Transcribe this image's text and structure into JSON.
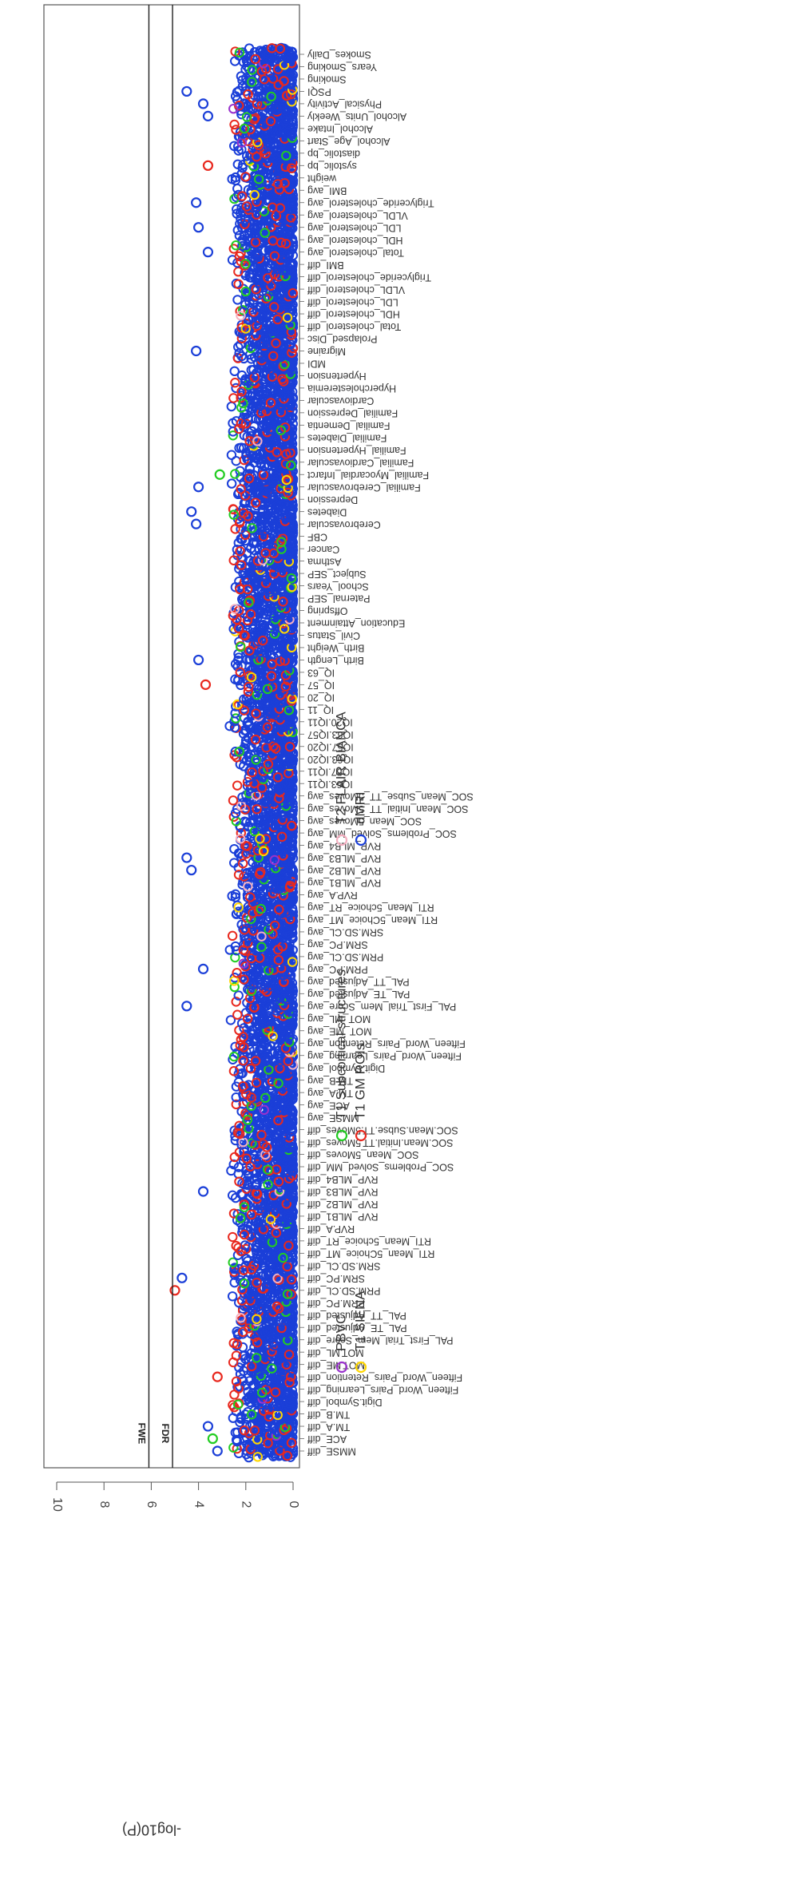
{
  "chart_data": {
    "type": "scatter",
    "orientation": "rotated-90",
    "title": "",
    "ylabel": "-log10(P)",
    "ylim": [
      0,
      10.5
    ],
    "yticks": [
      0,
      2,
      4,
      6,
      8,
      10
    ],
    "thresholds": [
      {
        "label": "FWE",
        "value": 6.1
      },
      {
        "label": "FDR",
        "value": 5.1
      }
    ],
    "legend": [
      {
        "label": "PBVC",
        "color": "#9932CC"
      },
      {
        "label": "T1 SIENA",
        "color": "#FFD700"
      },
      {
        "label": "T1 Subcortical structures",
        "color": "#22CC22"
      },
      {
        "label": "T1 GM ROIs",
        "color": "#E8281E"
      },
      {
        "label": "T2 FLAIR BIANCA",
        "color": "#F4AFC0"
      },
      {
        "label": "dMRI",
        "color": "#1B3FD8"
      }
    ],
    "categories": [
      "MMSE_diff",
      "ACE_diff",
      "TM.A_diff",
      "TM.B_diff",
      "Digit.Symbol_diff",
      "Fifteen_Word_Pairs_Learning_diff",
      "Fifteen_Word_Pairs_Retention_diff",
      "MOT.ME_diff",
      "MOT.ML_diff",
      "PAL_First_Trial_Mem_Score_diff",
      "PAL_TE_Adjusted_diff",
      "PAL_TT_Adjusted_diff",
      "PRM.PC_diff",
      "PRM.SD.CL_diff",
      "SRM.PC_diff",
      "SRM.SD.CL_diff",
      "RTI_Mean_5Choice_MT_diff",
      "RTI_Mean_5choice_RT_diff",
      "RVP.A_diff",
      "RVP_MLB1_diff",
      "RVP_MLB2_diff",
      "RVP_MLB3_diff",
      "RVP_MLB4_diff",
      "SOC_Problems_Solved_MM_diff",
      "SOC_Mean_5Moves_diff",
      "SOC.Mean.Initial.TT.5Moves_diff",
      "SOC.Mean.Subse.TT.5Moves_diff",
      "MMSE_avg",
      "ACE_avg",
      "TM.A_avg",
      "TM.B_avg",
      "Digit.Symbol_avg",
      "Fifteen_Word_Pairs_Learning_avg",
      "Fifteen_Word_Pairs_Retention_avg",
      "MOT_ME_avg",
      "MOT_ML_avg",
      "PAL_First_Trial_Mem_Score_avg",
      "PAL_TE_Adjusted_avg",
      "PAL_TT_Adjusted_avg",
      "PRM.PC_avg",
      "PRM.SD.CL_avg",
      "SRM.PC_avg",
      "SRM.SD.CL_avg",
      "RTI_Mean_5Choice_MT_avg",
      "RTI_Mean_5choice_RT_avg",
      "RVP.A_avg",
      "RVP_MLB1_avg",
      "RVP_MLB2_avg",
      "RVP_MLB3_avg",
      "RVP_MLB4_avg",
      "SOC_Problems_Solved_MM_avg",
      "SOC_Mean_5Moves_avg",
      "SOC_Mean_Initial_TT_5Moves_avg",
      "SOC_Mean_Subse_TT_5Moves_avg",
      "IQ63.IQ11",
      "IQ57.IQ11",
      "IQ63.IQ20",
      "IQ57.IQ20",
      "IQ63.IQ57",
      "IQ20.IQ11",
      "IQ_11",
      "IQ_20",
      "IQ_57",
      "IQ_63",
      "Birth_Length",
      "Birth_Weight",
      "Civil_Status",
      "Education_Attainment",
      "Offspring",
      "Paternal_SEP",
      "School_Years",
      "Subject_SEP",
      "Asthma",
      "Cancer",
      "CBF",
      "Cerebrovascular",
      "Diabetes",
      "Depression",
      "Familial_Cerebrovascular",
      "Familial_Myocardial_Infarct",
      "Familial_Cardiovascular",
      "Familial_Hypertension",
      "Familial_Diabetes",
      "Familial_Dementia",
      "Familial_Depression",
      "Cardiovascular",
      "Hypercholesteremia",
      "Hypertension",
      "MDI",
      "Migraine",
      "Prolapsed_Disc",
      "Total_cholesterol_diff",
      "HDL_cholesterol_diff",
      "LDL_cholesterol_diff",
      "VLDL_cholesterol_diff",
      "Triglyceride_cholesterol_diff",
      "BMI_diff",
      "Total_cholesterol_avg",
      "HDL_cholesterol_avg",
      "LDL_cholesterol_avg",
      "VLDL_cholesterol_avg",
      "Triglyceride_cholesterol_avg",
      "BMI_avg",
      "weight",
      "systolic_bp",
      "diastolic_bp",
      "Alcohol_Age_Start",
      "Alcohol_Intake",
      "Alcohol_Units_Weekly",
      "Physical_Activity",
      "PSQI",
      "Smoking",
      "Years_Smoking",
      "Smokes_Daily"
    ],
    "notable_points": [
      {
        "category": "MMSE_diff",
        "value": 3.2,
        "modality": "dMRI"
      },
      {
        "category": "ACE_diff",
        "value": 3.4,
        "modality": "T1 Subcortical structures"
      },
      {
        "category": "TM.A_diff",
        "value": 3.6,
        "modality": "dMRI"
      },
      {
        "category": "Fifteen_Word_Pairs_Retention_diff",
        "value": 3.2,
        "modality": "T1 GM ROIs"
      },
      {
        "category": "PRM.SD.CL_diff",
        "value": 5.0,
        "modality": "T1 GM ROIs"
      },
      {
        "category": "SRM.PC_diff",
        "value": 4.7,
        "modality": "dMRI"
      },
      {
        "category": "RVP_MLB3_diff",
        "value": 3.8,
        "modality": "dMRI"
      },
      {
        "category": "PAL_First_Trial_Mem_Score_avg",
        "value": 4.5,
        "modality": "dMRI"
      },
      {
        "category": "PRM.PC_avg",
        "value": 3.8,
        "modality": "dMRI"
      },
      {
        "category": "RVP_MLB2_avg",
        "value": 4.3,
        "modality": "dMRI"
      },
      {
        "category": "RVP_MLB3_avg",
        "value": 4.5,
        "modality": "dMRI"
      },
      {
        "category": "IQ_57",
        "value": 3.7,
        "modality": "T1 GM ROIs"
      },
      {
        "category": "Birth_Length",
        "value": 4.0,
        "modality": "dMRI"
      },
      {
        "category": "Cerebrovascular",
        "value": 4.1,
        "modality": "dMRI"
      },
      {
        "category": "Diabetes",
        "value": 4.3,
        "modality": "dMRI"
      },
      {
        "category": "Familial_Cerebrovascular",
        "value": 4.0,
        "modality": "dMRI"
      },
      {
        "category": "Familial_Myocardial_Infarct",
        "value": 3.1,
        "modality": "T1 Subcortical structures"
      },
      {
        "category": "Migraine",
        "value": 4.1,
        "modality": "dMRI"
      },
      {
        "category": "Total_cholesterol_avg",
        "value": 3.6,
        "modality": "dMRI"
      },
      {
        "category": "LDL_cholesterol_avg",
        "value": 4.0,
        "modality": "dMRI"
      },
      {
        "category": "Triglyceride_cholesterol_avg",
        "value": 4.1,
        "modality": "dMRI"
      },
      {
        "category": "systolic_bp",
        "value": 3.6,
        "modality": "T1 GM ROIs"
      },
      {
        "category": "Alcohol_Units_Weekly",
        "value": 3.6,
        "modality": "dMRI"
      },
      {
        "category": "Physical_Activity",
        "value": 3.8,
        "modality": "dMRI"
      },
      {
        "category": "PSQI",
        "value": 4.5,
        "modality": "dMRI"
      }
    ],
    "bulk_range": [
      0,
      2.7
    ]
  }
}
